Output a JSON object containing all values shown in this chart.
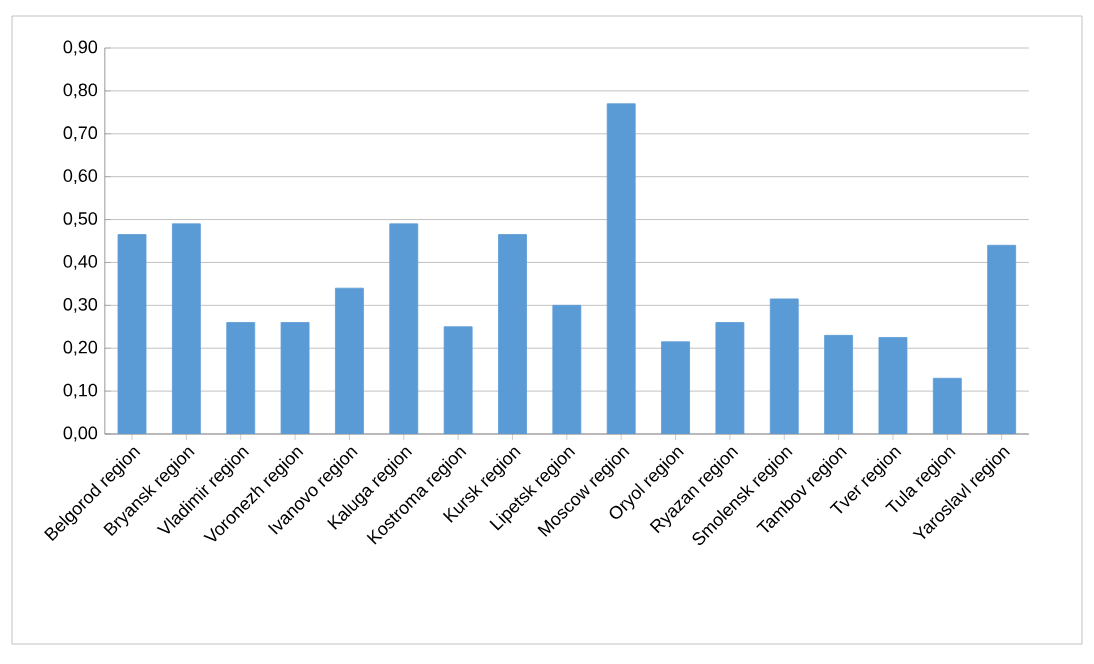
{
  "chart_data": {
    "type": "bar",
    "categories": [
      "Belgorod region",
      "Bryansk region",
      "Vladimir region",
      "Voronezh region",
      "Ivanovo region",
      "Kaluga region",
      "Kostroma region",
      "Kursk region",
      "Lipetsk region",
      "Moscow region",
      "Oryol region",
      "Ryazan region",
      "Smolensk region",
      "Tambov region",
      "Tver region",
      "Tula region",
      "Yaroslavl region"
    ],
    "values": [
      0.465,
      0.49,
      0.26,
      0.26,
      0.34,
      0.49,
      0.25,
      0.465,
      0.3,
      0.77,
      0.215,
      0.26,
      0.315,
      0.23,
      0.225,
      0.13,
      0.44
    ],
    "color": "#5b9bd5",
    "ylim": [
      0,
      0.9
    ],
    "yticks": [
      {
        "value": 0,
        "label": "0,00"
      },
      {
        "value": 0.1,
        "label": "0,10"
      },
      {
        "value": 0.2,
        "label": "0,20"
      },
      {
        "value": 0.3,
        "label": "0,30"
      },
      {
        "value": 0.4,
        "label": "0,40"
      },
      {
        "value": 0.5,
        "label": "0,50"
      },
      {
        "value": 0.6,
        "label": "0,60"
      },
      {
        "value": 0.7,
        "label": "0,70"
      },
      {
        "value": 0.8,
        "label": "0,80"
      },
      {
        "value": 0.9,
        "label": "0,90"
      }
    ],
    "grid": "y"
  }
}
